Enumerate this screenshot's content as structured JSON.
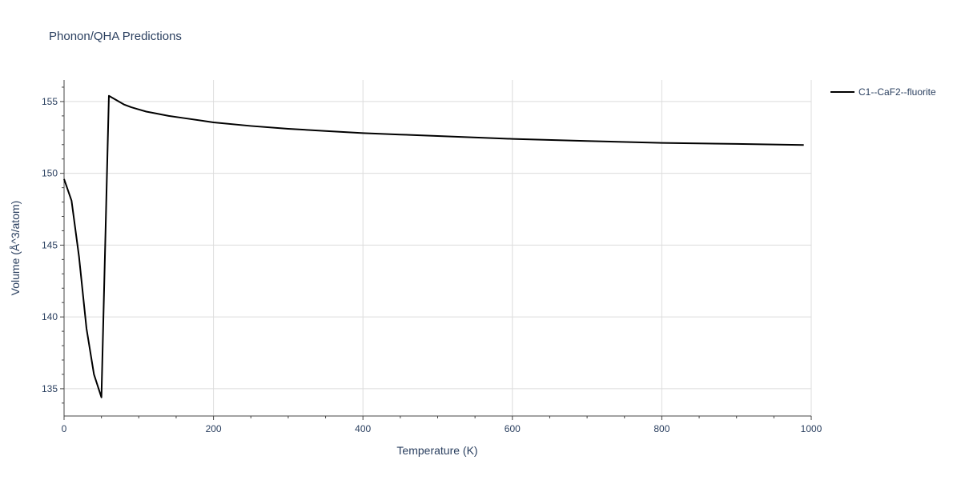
{
  "chart_data": {
    "type": "line",
    "title": "Phonon/QHA Predictions",
    "xlabel": "Temperature (K)",
    "ylabel": "Volume (Å^3/atom)",
    "xlim": [
      0,
      1000
    ],
    "ylim": [
      133.1,
      156.5
    ],
    "x_ticks": [
      0,
      200,
      400,
      600,
      800,
      1000
    ],
    "y_ticks": [
      135,
      140,
      145,
      150,
      155
    ],
    "grid": true,
    "legend_position": "top-right, outside plot",
    "series": [
      {
        "name": "C1--CaF2--fluorite",
        "color": "#000000",
        "x": [
          0,
          10,
          20,
          30,
          40,
          50,
          60,
          70,
          80,
          90,
          100,
          110,
          120,
          140,
          160,
          200,
          250,
          300,
          350,
          400,
          450,
          500,
          600,
          700,
          800,
          900,
          990
        ],
        "y": [
          149.6,
          148.1,
          144.2,
          139.2,
          136.0,
          134.4,
          155.4,
          155.1,
          154.8,
          154.6,
          154.45,
          154.3,
          154.2,
          154.0,
          153.85,
          153.55,
          153.3,
          153.1,
          152.95,
          152.8,
          152.7,
          152.6,
          152.4,
          152.25,
          152.12,
          152.05,
          151.97
        ]
      }
    ]
  }
}
